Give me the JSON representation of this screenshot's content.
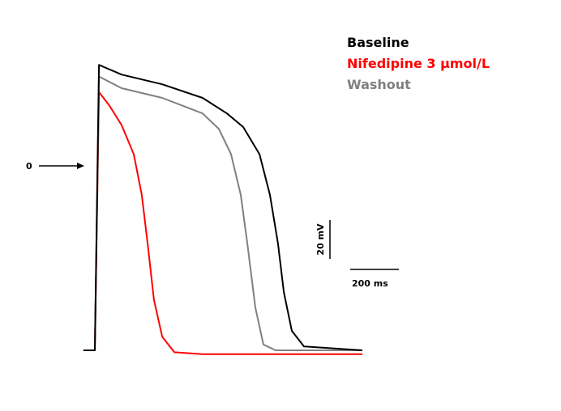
{
  "chart_data": {
    "type": "line",
    "xlim": [
      -100,
      1200
    ],
    "ylim": [
      -120,
      80
    ],
    "zero_marker": 0,
    "scale_bars": [
      {
        "label": "20 mV",
        "value": 20,
        "axis": "y"
      },
      {
        "label": "200 ms",
        "value": 200,
        "axis": "x"
      }
    ],
    "series": [
      {
        "name": "Baseline",
        "color": "#000000",
        "x": [
          -47,
          0,
          17,
          110,
          277,
          443,
          543,
          610,
          677,
          720,
          753,
          777,
          810,
          860,
          1100
        ],
        "values": [
          -95,
          -95,
          52,
          47,
          42,
          35,
          27,
          20,
          6,
          -15,
          -40,
          -65,
          -85,
          -93,
          -95
        ]
      },
      {
        "name": "Nifedipine 3 µmol/L",
        "color": "#ff0000",
        "x": [
          -47,
          0,
          17,
          60,
          110,
          160,
          193,
          217,
          243,
          277,
          327,
          443,
          1100
        ],
        "values": [
          -95,
          -95,
          38,
          31,
          21,
          6,
          -15,
          -40,
          -69,
          -88,
          -96,
          -97,
          -97
        ]
      },
      {
        "name": "Washout",
        "color": "#808080",
        "x": [
          -47,
          0,
          17,
          110,
          277,
          443,
          510,
          560,
          600,
          627,
          660,
          693,
          743,
          1100
        ],
        "values": [
          -95,
          -95,
          46,
          40,
          35,
          27,
          19,
          6,
          -15,
          -40,
          -73,
          -92,
          -95,
          -95
        ]
      }
    ]
  }
}
